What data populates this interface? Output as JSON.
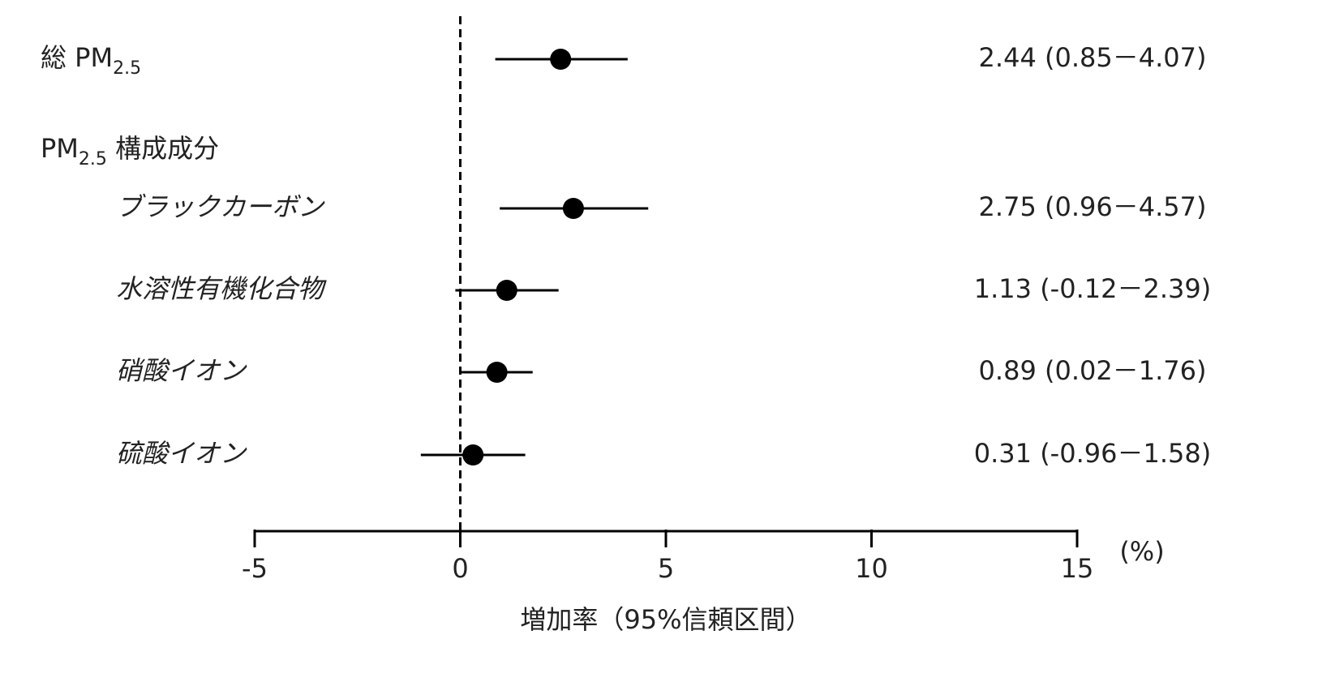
{
  "chart_data": {
    "type": "forest",
    "x_label": "増加率（95%信頼区間）",
    "x_unit": "(%)",
    "xlim": [
      -5,
      15
    ],
    "xticks": [
      -5,
      0,
      5,
      10,
      15
    ],
    "reference_line": 0,
    "marker_color": "#000000",
    "rows": [
      {
        "label": [
          {
            "text": "総 PM"
          },
          {
            "text": "2.5",
            "subscript": true
          }
        ],
        "value": 2.44,
        "lower": 0.85,
        "upper": 4.07,
        "value_label": "2.44 (0.85－4.07)"
      },
      {
        "label": [
          {
            "text": "PM"
          },
          {
            "text": "2.5",
            "subscript": true
          },
          {
            "text": " 構成成分"
          }
        ]
      },
      {
        "label": [
          {
            "text": "ブラックカーボン"
          }
        ],
        "italic": true,
        "value": 2.75,
        "lower": 0.96,
        "upper": 4.57,
        "value_label": "2.75 (0.96－4.57)"
      },
      {
        "label": [
          {
            "text": "水溶性有機化合物"
          }
        ],
        "italic": true,
        "value": 1.13,
        "lower": -0.12,
        "upper": 2.39,
        "value_label": "1.13 (-0.12－2.39)"
      },
      {
        "label": [
          {
            "text": "硝酸イオン"
          }
        ],
        "italic": true,
        "value": 0.89,
        "lower": 0.02,
        "upper": 1.76,
        "value_label": "0.89 (0.02－1.76)"
      },
      {
        "label": [
          {
            "text": "硫酸イオン"
          }
        ],
        "italic": true,
        "value": 0.31,
        "lower": -0.96,
        "upper": 1.58,
        "value_label": "0.31 (-0.96－1.58)"
      }
    ]
  }
}
